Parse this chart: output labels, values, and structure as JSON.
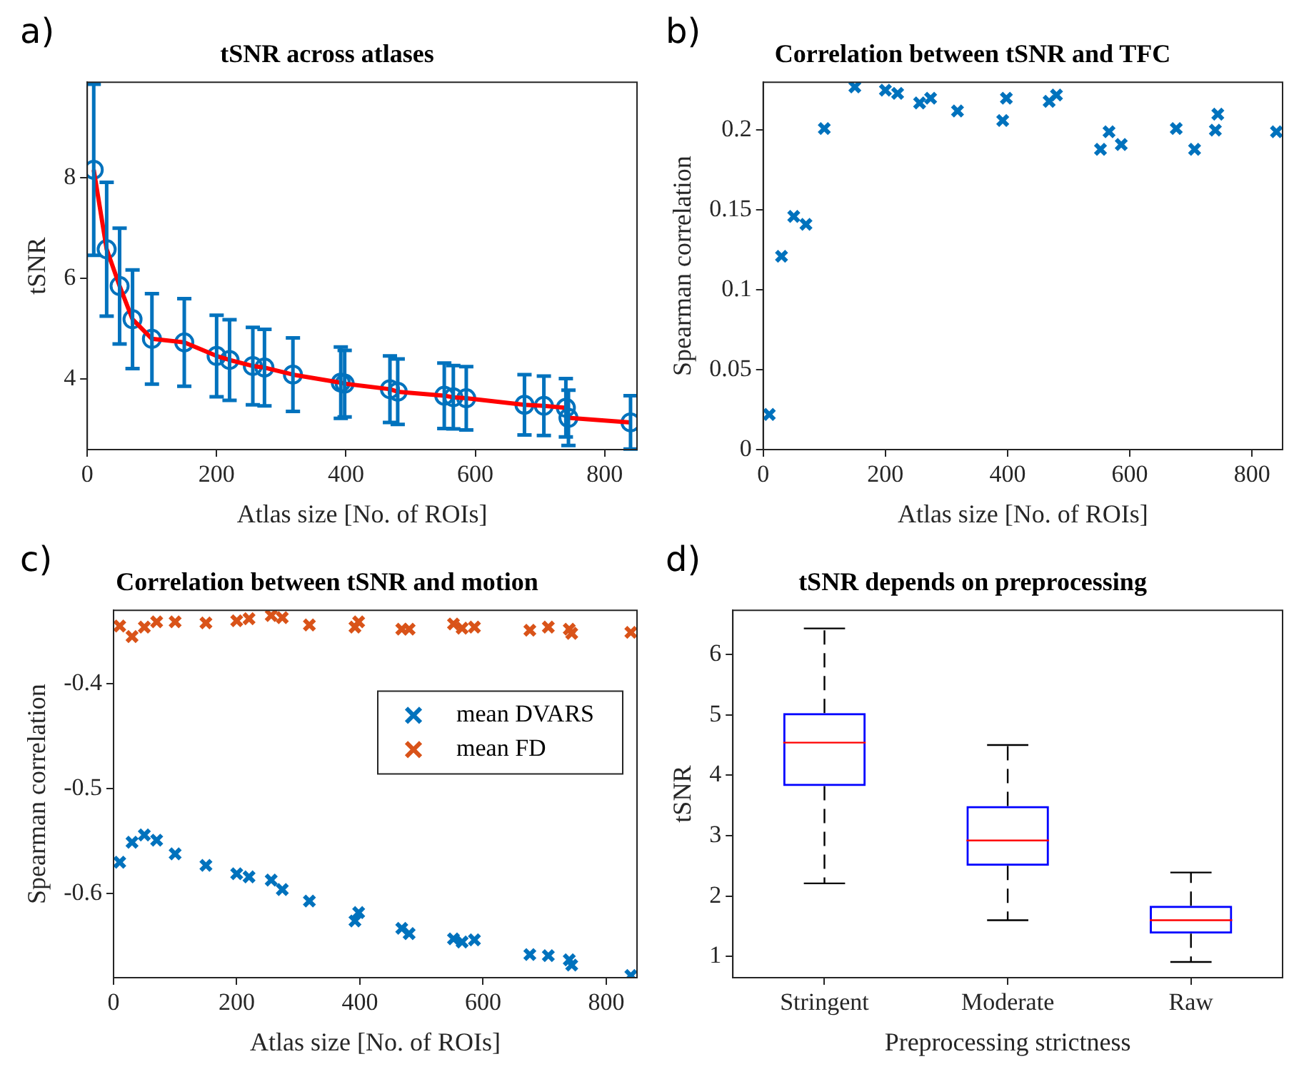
{
  "chart_data": [
    {
      "type": "scatter",
      "title": "tSNR across atlases",
      "xlabel": "Atlas size [No. of ROIs]",
      "ylabel": "tSNR",
      "annotations": [
        "a)"
      ],
      "grid": false,
      "x": [
        10,
        30,
        50,
        70,
        100,
        150,
        200,
        220,
        256,
        274,
        318,
        392,
        398,
        468,
        480,
        552,
        566,
        586,
        676,
        706,
        740,
        744,
        840
      ],
      "xlim": [
        0,
        850
      ],
      "xticks": [
        0,
        200,
        400,
        600,
        800
      ],
      "ylim": [
        2.6,
        9.9
      ],
      "yticks": [
        4,
        6,
        8
      ],
      "series": [
        {
          "type": "line",
          "color": "#ff0000",
          "marker": "none",
          "values": [
            8.16,
            6.58,
            5.85,
            5.19,
            4.8,
            4.73,
            4.46,
            4.38,
            4.26,
            4.23,
            4.09,
            3.93,
            3.91,
            3.8,
            3.75,
            3.67,
            3.64,
            3.62,
            3.49,
            3.47,
            3.43,
            3.23,
            3.14
          ]
        },
        {
          "type": "scatter",
          "color": "#0072bd",
          "marker": "circle",
          "values": [
            8.16,
            6.58,
            5.85,
            5.19,
            4.8,
            4.73,
            4.46,
            4.38,
            4.26,
            4.23,
            4.09,
            3.93,
            3.91,
            3.8,
            3.75,
            3.67,
            3.64,
            3.62,
            3.49,
            3.47,
            3.43,
            3.23,
            3.14
          ],
          "errors": [
            1.7,
            1.33,
            1.15,
            0.98,
            0.9,
            0.87,
            0.81,
            0.8,
            0.77,
            0.76,
            0.73,
            0.71,
            0.66,
            0.66,
            0.65,
            0.65,
            0.63,
            0.63,
            0.6,
            0.59,
            0.58,
            0.55,
            0.53
          ]
        }
      ]
    },
    {
      "type": "scatter",
      "title": "Correlation between tSNR and TFC",
      "xlabel": "Atlas size [No. of ROIs]",
      "ylabel": "Spearman correlation",
      "annotations": [
        "b)"
      ],
      "grid": false,
      "marker": "cross",
      "x": [
        10,
        30,
        50,
        70,
        100,
        150,
        200,
        220,
        256,
        274,
        318,
        392,
        398,
        468,
        480,
        552,
        566,
        586,
        676,
        706,
        740,
        744,
        840
      ],
      "xlim": [
        0,
        850
      ],
      "xticks": [
        0,
        200,
        400,
        600,
        800
      ],
      "ylim": [
        0,
        0.23
      ],
      "yticks": [
        0,
        0.05,
        0.1,
        0.15,
        0.2
      ],
      "series": [
        {
          "color": "#0072bd",
          "values": [
            0.022,
            0.121,
            0.146,
            0.141,
            0.201,
            0.227,
            0.225,
            0.223,
            0.217,
            0.22,
            0.212,
            0.206,
            0.22,
            0.218,
            0.222,
            0.188,
            0.199,
            0.191,
            0.201,
            0.188,
            0.2,
            0.21,
            0.199
          ]
        }
      ]
    },
    {
      "type": "scatter",
      "title": "Correlation between tSNR and motion",
      "xlabel": "Atlas size [No. of ROIs]",
      "ylabel": "Spearman correlation",
      "annotations": [
        "c)"
      ],
      "grid": false,
      "marker": "cross",
      "legend": "top right",
      "x": [
        10,
        30,
        50,
        70,
        100,
        150,
        200,
        220,
        256,
        274,
        318,
        392,
        398,
        468,
        480,
        552,
        566,
        586,
        676,
        706,
        740,
        744,
        840
      ],
      "xlim": [
        0,
        850
      ],
      "xticks": [
        0,
        200,
        400,
        600,
        800
      ],
      "ylim": [
        -0.68,
        -0.33
      ],
      "yticks": [
        -0.6,
        -0.5,
        -0.4
      ],
      "series": [
        {
          "name": "mean DVARS",
          "color": "#0072bd",
          "values": [
            -0.57,
            -0.551,
            -0.544,
            -0.549,
            -0.562,
            -0.573,
            -0.581,
            -0.584,
            -0.587,
            -0.596,
            -0.607,
            -0.626,
            -0.618,
            -0.633,
            -0.638,
            -0.643,
            -0.646,
            -0.644,
            -0.658,
            -0.659,
            -0.663,
            -0.668,
            -0.678
          ]
        },
        {
          "name": "mean FD",
          "color": "#d95319",
          "values": [
            -0.345,
            -0.355,
            -0.346,
            -0.341,
            -0.341,
            -0.342,
            -0.34,
            -0.338,
            -0.335,
            -0.337,
            -0.344,
            -0.346,
            -0.341,
            -0.348,
            -0.348,
            -0.343,
            -0.347,
            -0.346,
            -0.349,
            -0.346,
            -0.348,
            -0.352,
            -0.351
          ]
        }
      ]
    },
    {
      "type": "box",
      "title": "tSNR depends on preprocessing",
      "xlabel": "Preprocessing strictness",
      "ylabel": "tSNR",
      "annotations": [
        "d)"
      ],
      "grid": false,
      "color": "#0000ff",
      "categories": [
        "Stringent",
        "Moderate",
        "Raw"
      ],
      "ylim": [
        0.65,
        6.73
      ],
      "yticks": [
        1,
        2,
        3,
        4,
        5,
        6
      ],
      "boxes": [
        {
          "low": 2.21,
          "q1": 3.82,
          "median": 4.54,
          "q3": 5.03,
          "high": 6.43
        },
        {
          "low": 1.6,
          "q1": 2.5,
          "median": 2.92,
          "q3": 3.49,
          "high": 4.5
        },
        {
          "low": 0.91,
          "q1": 1.38,
          "median": 1.6,
          "q3": 1.84,
          "high": 2.39
        }
      ]
    }
  ]
}
